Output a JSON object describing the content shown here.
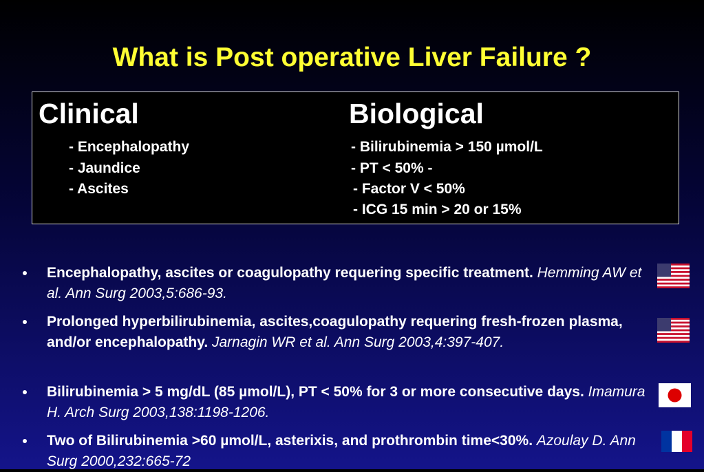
{
  "title": "What is Post operative Liver Failure ?",
  "box": {
    "clinical": {
      "header": "Clinical",
      "items": [
        "- Encephalopathy",
        "- Jaundice",
        "- Ascites"
      ]
    },
    "biological": {
      "header": "Biological",
      "items": [
        "- Bilirubinemia > 150 µmol/L",
        "- PT < 50% -",
        "- Factor V < 50%",
        "- ICG 15 min > 20 or 15%"
      ]
    }
  },
  "bullets": [
    {
      "text": "Encephalopathy, ascites or coagulopathy requering specific treatment.",
      "citation": "Hemming AW et al. Ann Surg 2003,5:686-93."
    },
    {
      "text": "Prolonged hyperbilirubinemia, ascites,coagulopathy requering fresh-frozen plasma, and/or encephalopathy.",
      "citation": "Jarnagin WR et al. Ann Surg 2003,4:397-407."
    },
    {
      "text": "Bilirubinemia > 5 mg/dL (85 µmol/L), PT < 50% for 3 or more consecutive days.",
      "citation": "Imamura H. Arch Surg 2003,138:1198-1206."
    },
    {
      "text": "Two of  Bilirubinemia >60 µmol/L, asterixis, and prothrombin time<30%.",
      "citation": "Azoulay D. Ann Surg 2000,232:665-72"
    }
  ]
}
